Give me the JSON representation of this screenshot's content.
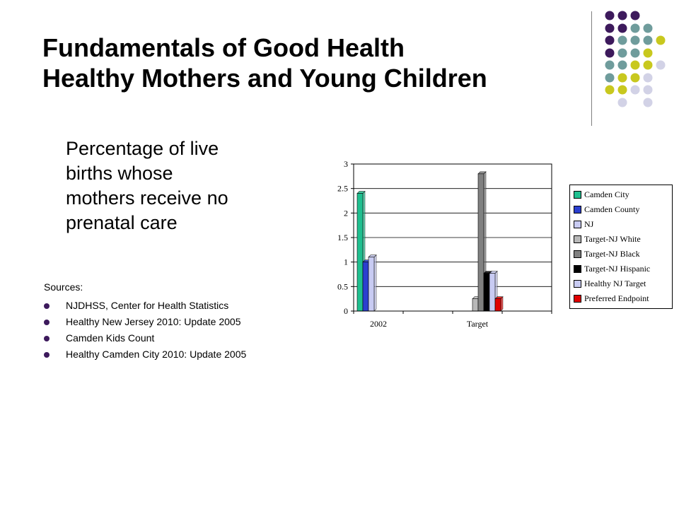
{
  "slide": {
    "title_line1": "Fundamentals of Good Health",
    "title_line2": "Healthy Mothers and Young Children",
    "subtitle_lines": [
      "Percentage of live",
      "births whose",
      "mothers receive no",
      "prenatal care"
    ],
    "sources_label": "Sources:",
    "sources": [
      "NJDHSS, Center for Health Statistics",
      "Healthy New Jersey 2010:  Update 2005",
      "Camden Kids Count",
      "Healthy Camden City 2010: Update 2005"
    ]
  },
  "colors": {
    "purple": "#3d1a5c",
    "teal": "#6f9c9c",
    "olive": "#c8c81e",
    "lavender": "#d2d2e6"
  },
  "chart_data": {
    "type": "bar",
    "categories": [
      "2002",
      "Target"
    ],
    "yticks": [
      "0",
      "0.5",
      "1",
      "1.5",
      "2",
      "2.5",
      "3"
    ],
    "ylim": [
      0,
      3
    ],
    "grid": true,
    "legend_position": "right",
    "series": [
      {
        "name": "Camden City",
        "color": "#1fbf8f",
        "values": [
          2.4,
          null
        ]
      },
      {
        "name": "Camden County",
        "color": "#2b3fcf",
        "values": [
          1.0,
          null
        ]
      },
      {
        "name": "NJ",
        "color": "#c8cbf2",
        "values": [
          1.1,
          null
        ]
      },
      {
        "name": "Target-NJ White",
        "color": "#b8b8b8",
        "values": [
          null,
          0.25
        ]
      },
      {
        "name": "Target-NJ Black",
        "color": "#808080",
        "values": [
          null,
          2.8
        ]
      },
      {
        "name": "Target-NJ Hispanic",
        "color": "#000000",
        "values": [
          null,
          0.77
        ]
      },
      {
        "name": "Healthy NJ Target",
        "color": "#c8cbf2",
        "values": [
          null,
          0.77
        ]
      },
      {
        "name": "Preferred Endpoint",
        "color": "#e00000",
        "values": [
          null,
          0.25
        ]
      }
    ]
  }
}
